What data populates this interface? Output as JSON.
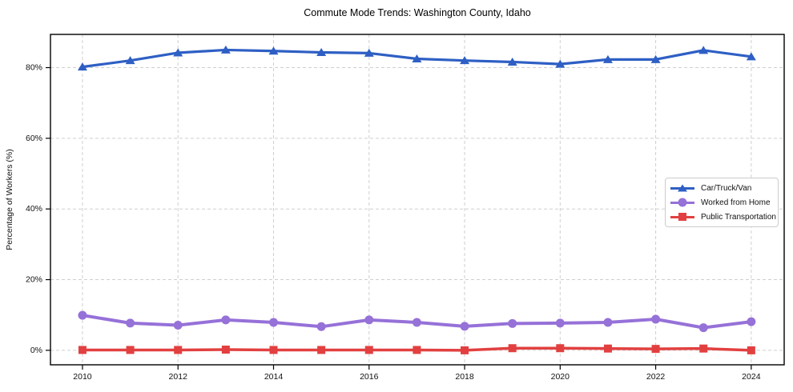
{
  "title": "Commute Mode Trends: Washington County, Idaho",
  "chart_data": {
    "type": "line",
    "title": "Commute Mode Trends: Washington County, Idaho",
    "xlabel": "",
    "ylabel": "Percentage of Workers (%)",
    "x": [
      2010,
      2011,
      2012,
      2013,
      2014,
      2015,
      2016,
      2017,
      2018,
      2019,
      2020,
      2021,
      2022,
      2023,
      2024
    ],
    "series": [
      {
        "name": "Car/Truck/Van",
        "color": "#2e5fc4",
        "marker": "triangle",
        "line_width": 3.2,
        "values": [
          80.2,
          82.0,
          84.2,
          85.0,
          84.7,
          84.3,
          84.1,
          82.5,
          82.0,
          81.6,
          81.0,
          82.3,
          82.3,
          84.9,
          83.1
        ]
      },
      {
        "name": "Worked from Home",
        "color": "#9671d8",
        "marker": "circle",
        "line_width": 4.0,
        "values": [
          9.9,
          7.7,
          7.1,
          8.6,
          7.9,
          6.7,
          8.6,
          7.9,
          6.8,
          7.6,
          7.7,
          7.9,
          8.8,
          6.4,
          8.1
        ]
      },
      {
        "name": "Public Transportation",
        "color": "#e24040",
        "marker": "square",
        "line_width": 3.5,
        "values": [
          0.1,
          0.1,
          0.1,
          0.2,
          0.1,
          0.1,
          0.1,
          0.1,
          0.0,
          0.6,
          0.6,
          0.5,
          0.4,
          0.5,
          0.0
        ]
      }
    ],
    "xticks": [
      2010,
      2012,
      2014,
      2016,
      2018,
      2020,
      2022,
      2024
    ],
    "xtick_labels": [
      "2010",
      "2012",
      "2014",
      "2016",
      "2018",
      "2020",
      "2022",
      "2024"
    ],
    "yticks": [
      0,
      20,
      40,
      60,
      80
    ],
    "ytick_labels": [
      "0%",
      "20%",
      "40%",
      "60%",
      "80%"
    ],
    "xlim": [
      2009.33,
      2024.69
    ],
    "ylim": [
      -4.1,
      89.4
    ],
    "grid": true,
    "grid_color": "#cfcfcf",
    "axis_color": "#000000",
    "legend_position": "center right"
  }
}
